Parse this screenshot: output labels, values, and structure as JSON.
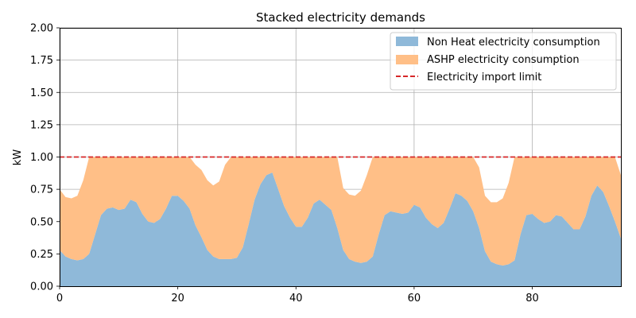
{
  "chart_data": {
    "type": "area",
    "title": "Stacked electricity demands",
    "xlabel": "",
    "ylabel": "kW",
    "xlim": [
      0,
      95
    ],
    "ylim": [
      0,
      2.0
    ],
    "x_ticks": [
      0,
      20,
      40,
      60,
      80
    ],
    "y_ticks": [
      "0.00",
      "0.25",
      "0.50",
      "0.75",
      "1.00",
      "1.25",
      "1.50",
      "1.75",
      "2.00"
    ],
    "grid": true,
    "legend_position": "top-right",
    "series": [
      {
        "name": "Non Heat electricity consumption",
        "kind": "stacked-area",
        "color": "#8fb9d9",
        "values": [
          0.28,
          0.23,
          0.21,
          0.2,
          0.21,
          0.25,
          0.4,
          0.55,
          0.6,
          0.61,
          0.59,
          0.6,
          0.67,
          0.65,
          0.56,
          0.5,
          0.49,
          0.52,
          0.6,
          0.7,
          0.7,
          0.66,
          0.6,
          0.47,
          0.38,
          0.28,
          0.23,
          0.21,
          0.21,
          0.21,
          0.22,
          0.3,
          0.48,
          0.67,
          0.79,
          0.86,
          0.88,
          0.75,
          0.62,
          0.53,
          0.46,
          0.46,
          0.53,
          0.64,
          0.67,
          0.63,
          0.59,
          0.45,
          0.28,
          0.21,
          0.19,
          0.18,
          0.19,
          0.23,
          0.4,
          0.55,
          0.58,
          0.57,
          0.56,
          0.57,
          0.63,
          0.61,
          0.53,
          0.48,
          0.45,
          0.49,
          0.6,
          0.72,
          0.7,
          0.66,
          0.58,
          0.45,
          0.27,
          0.19,
          0.17,
          0.16,
          0.17,
          0.2,
          0.4,
          0.55,
          0.56,
          0.52,
          0.49,
          0.5,
          0.55,
          0.54,
          0.49,
          0.44,
          0.44,
          0.54,
          0.7,
          0.78,
          0.73,
          0.62,
          0.5,
          0.37
        ]
      },
      {
        "name": "ASHP electricity consumption",
        "kind": "stacked-area",
        "color": "#ffbf87",
        "totals": [
          0.75,
          0.69,
          0.68,
          0.7,
          0.82,
          1.0,
          1.0,
          1.0,
          1.0,
          1.0,
          1.0,
          1.0,
          1.0,
          1.0,
          1.0,
          1.0,
          1.0,
          1.0,
          1.0,
          1.0,
          1.0,
          1.0,
          1.0,
          0.94,
          0.9,
          0.82,
          0.78,
          0.81,
          0.94,
          1.0,
          1.0,
          1.0,
          1.0,
          1.0,
          1.0,
          1.0,
          1.0,
          1.0,
          1.0,
          1.0,
          1.0,
          1.0,
          1.0,
          1.0,
          1.0,
          1.0,
          1.0,
          1.0,
          0.76,
          0.71,
          0.7,
          0.74,
          0.86,
          1.0,
          1.0,
          1.0,
          1.0,
          1.0,
          1.0,
          1.0,
          1.0,
          1.0,
          1.0,
          1.0,
          1.0,
          1.0,
          1.0,
          1.0,
          1.0,
          1.0,
          1.0,
          0.92,
          0.7,
          0.65,
          0.65,
          0.68,
          0.8,
          1.0,
          1.0,
          1.0,
          1.0,
          1.0,
          1.0,
          1.0,
          1.0,
          1.0,
          1.0,
          1.0,
          1.0,
          1.0,
          1.0,
          1.0,
          1.0,
          1.0,
          1.0,
          0.86
        ]
      },
      {
        "name": "Electricity import limit",
        "kind": "hline",
        "color": "#d62728",
        "value": 1.0
      }
    ]
  }
}
